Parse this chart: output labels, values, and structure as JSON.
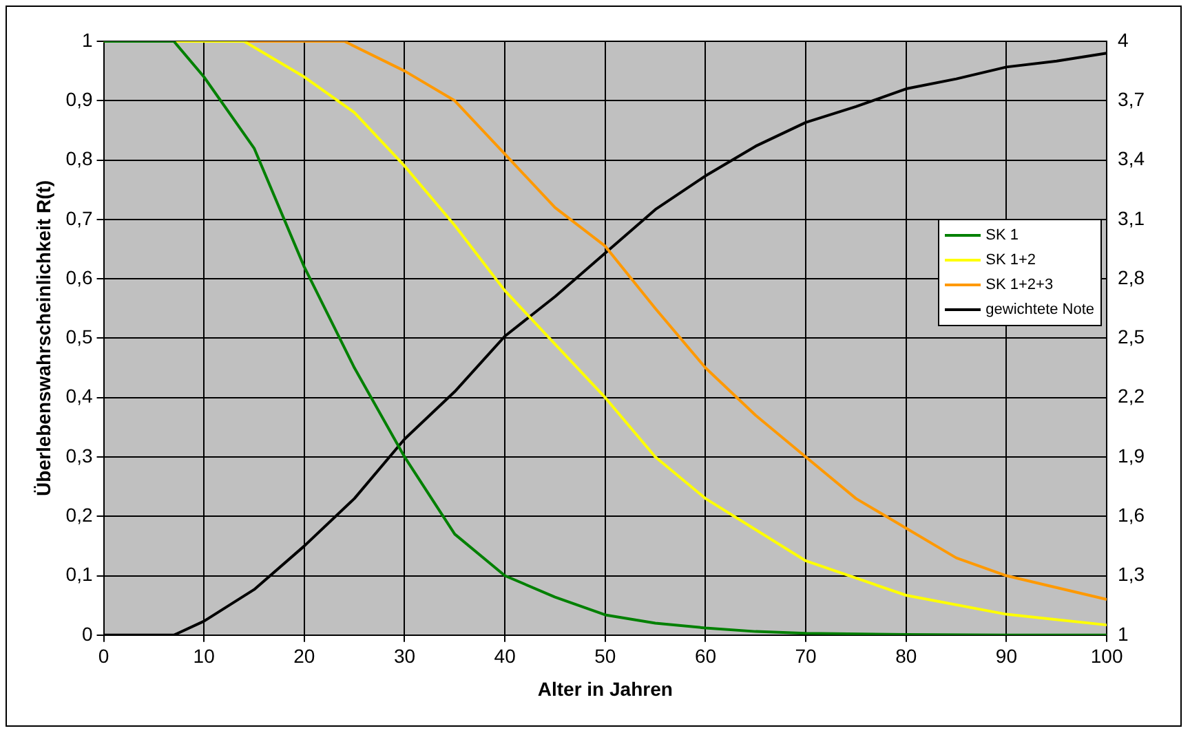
{
  "chart_data": {
    "type": "line",
    "xlabel": "Alter in Jahren",
    "ylabel": "Überlebenswahrscheinlichkeit R(t)",
    "xlim": [
      0,
      100
    ],
    "xticks": [
      0,
      10,
      20,
      30,
      40,
      50,
      60,
      70,
      80,
      90,
      100
    ],
    "ylim": [
      0,
      1
    ],
    "yticks": [
      0,
      {
        "value": 0.1,
        "label": "0,1"
      },
      {
        "value": 0.2,
        "label": "0,2"
      },
      {
        "value": 0.3,
        "label": "0,3"
      },
      {
        "value": 0.4,
        "label": "0,4"
      },
      {
        "value": 0.5,
        "label": "0,5"
      },
      {
        "value": 0.6,
        "label": "0,6"
      },
      {
        "value": 0.7,
        "label": "0,7"
      },
      {
        "value": 0.8,
        "label": "0,8"
      },
      {
        "value": 0.9,
        "label": "0,9"
      },
      1
    ],
    "y2lim": [
      1,
      4
    ],
    "y2ticks": [
      1,
      {
        "value": 1.3,
        "label": "1,3"
      },
      {
        "value": 1.6,
        "label": "1,6"
      },
      {
        "value": 1.9,
        "label": "1,9"
      },
      {
        "value": 2.2,
        "label": "2,2"
      },
      {
        "value": 2.5,
        "label": "2,5"
      },
      {
        "value": 2.8,
        "label": "2,8"
      },
      {
        "value": 3.1,
        "label": "3,1"
      },
      {
        "value": 3.4,
        "label": "3,4"
      },
      {
        "value": 3.7,
        "label": "3,7"
      },
      4
    ],
    "grid": true,
    "legend": "right",
    "marker": "none",
    "line_style": "solid",
    "series": [
      {
        "name": "SK 1",
        "color": "#008000",
        "x": [
          0,
          7,
          10,
          15,
          20,
          25,
          30,
          35,
          40,
          45,
          50,
          55,
          60,
          65,
          70,
          80,
          90,
          100
        ],
        "values": [
          1,
          1,
          0.94,
          0.82,
          0.62,
          0.45,
          0.3,
          0.17,
          0.1,
          0.064,
          0.034,
          0.02,
          0.012,
          0.006,
          0.003,
          0.001,
          0,
          0
        ]
      },
      {
        "name": "SK 1+2",
        "color": "#ffff00",
        "x": [
          0,
          14,
          20,
          25,
          30,
          35,
          40,
          45,
          50,
          55,
          60,
          70,
          80,
          90,
          100
        ],
        "values": [
          1,
          1,
          0.94,
          0.88,
          0.79,
          0.69,
          0.58,
          0.49,
          0.4,
          0.3,
          0.23,
          0.125,
          0.067,
          0.035,
          0.017
        ]
      },
      {
        "name": "SK 1+2+3",
        "color": "#ff9900",
        "x": [
          0,
          24,
          30,
          35,
          40,
          45,
          50,
          55,
          60,
          65,
          70,
          75,
          80,
          85,
          90,
          100
        ],
        "values": [
          1,
          1,
          0.95,
          0.9,
          0.81,
          0.72,
          0.655,
          0.55,
          0.45,
          0.37,
          0.3,
          0.23,
          0.18,
          0.13,
          0.1,
          0.06
        ]
      },
      {
        "name": "gewichtete Note",
        "color": "#000000",
        "axis": "y2",
        "x": [
          0,
          7,
          10,
          15,
          20,
          25,
          30,
          35,
          40,
          45,
          50,
          55,
          60,
          65,
          70,
          75,
          80,
          85,
          90,
          95,
          100
        ],
        "values": [
          1,
          1,
          1.07,
          1.23,
          1.45,
          1.69,
          1.99,
          2.23,
          2.51,
          2.71,
          2.93,
          3.15,
          3.32,
          3.47,
          3.59,
          3.67,
          3.76,
          3.81,
          3.87,
          3.9,
          3.94
        ]
      }
    ]
  }
}
